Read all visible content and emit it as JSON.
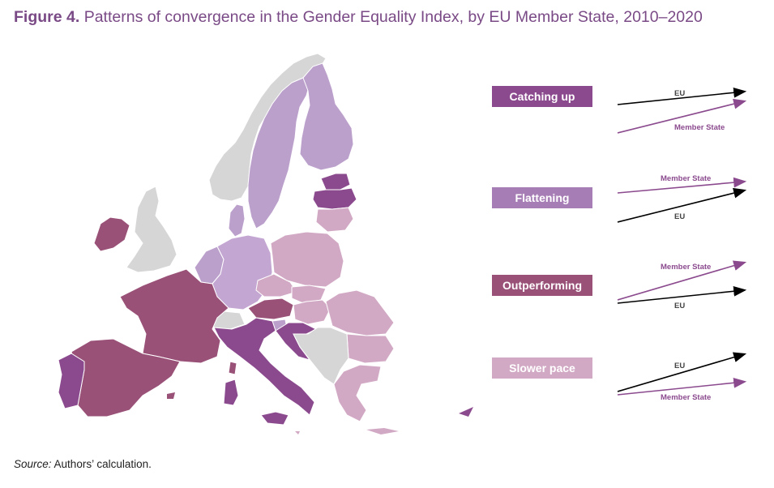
{
  "title": {
    "prefix": "Figure 4.",
    "text": "Patterns of convergence in the Gender Equality Index, by EU Member State, 2010–2020"
  },
  "source": {
    "label": "Source:",
    "text": "Authors’ calculation."
  },
  "colors": {
    "catching_up": "#8b4a8e",
    "flattening": "#a77db6",
    "flattening_light": "#bba0cc",
    "outperforming": "#9a5178",
    "slower_pace": "#d2a9c4",
    "non_eu": "#d6d6d6",
    "eu_line": "#000000",
    "member_state_line": "#8b4a8e"
  },
  "legend": [
    {
      "id": "catching_up",
      "label": "Catching up",
      "upper_label": "EU",
      "lower_label": "Member State"
    },
    {
      "id": "flattening",
      "label": "Flattening",
      "upper_label": "Member State",
      "lower_label": "EU"
    },
    {
      "id": "outperforming",
      "label": "Outperforming",
      "upper_label": "Member State",
      "lower_label": "EU"
    },
    {
      "id": "slower_pace",
      "label": "Slower pace",
      "upper_label": "EU",
      "lower_label": "Member State"
    }
  ],
  "map": {
    "catching_up": [
      "Latvia",
      "Lithuania",
      "Italy",
      "Croatia",
      "Cyprus",
      "Portugal"
    ],
    "flattening": [
      "Sweden",
      "Finland",
      "Denmark",
      "Germany",
      "Belgium",
      "Netherlands",
      "Luxembourg",
      "Estonia",
      "Slovenia"
    ],
    "outperforming": [
      "France",
      "Spain",
      "Austria",
      "Ireland"
    ],
    "slower_pace": [
      "Poland",
      "Czechia",
      "Slovakia",
      "Hungary",
      "Romania",
      "Bulgaria",
      "Greece",
      "Malta"
    ]
  }
}
